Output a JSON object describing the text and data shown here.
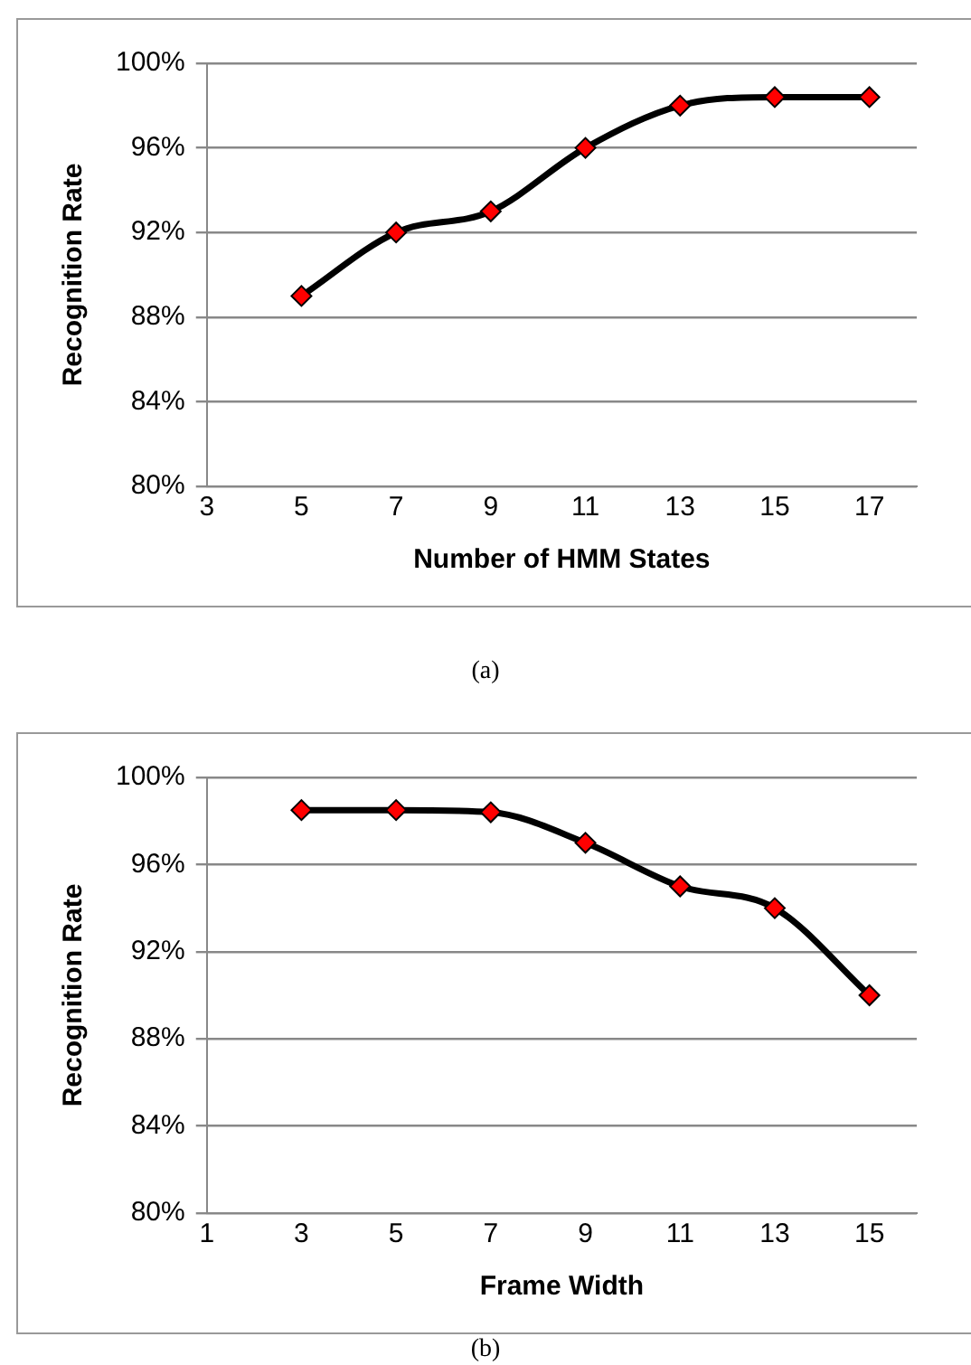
{
  "chart_data": [
    {
      "type": "line",
      "xlabel": "Number of HMM States",
      "ylabel": "Recognition Rate",
      "annotations": [
        "(a)"
      ],
      "x": [
        5,
        7,
        9,
        11,
        13,
        15,
        17
      ],
      "series": [
        {
          "color": "#000000",
          "colors": [
            "#ff0000",
            "#ff0000",
            "#ff0000",
            "#ff0000",
            "#ff0000",
            "#ff0000",
            "#ff0000"
          ],
          "values": [
            89,
            92,
            93,
            96,
            98,
            98.4,
            98.4
          ]
        }
      ],
      "xlim": [
        3,
        18
      ],
      "xticks": [
        3,
        5,
        7,
        9,
        11,
        13,
        15,
        17
      ],
      "ylim": [
        80,
        100
      ],
      "yticks": [
        {
          "value": 80,
          "label": "80%"
        },
        {
          "value": 84,
          "label": "84%"
        },
        {
          "value": 88,
          "label": "88%"
        },
        {
          "value": 92,
          "label": "92%"
        },
        {
          "value": 96,
          "label": "96%"
        },
        {
          "value": 100,
          "label": "100%"
        }
      ],
      "grid": "y",
      "legend": false,
      "marker": "diamond",
      "line_style": "solid"
    },
    {
      "type": "line",
      "xlabel": "Frame Width",
      "ylabel": "Recognition Rate",
      "annotations": [
        "(b)"
      ],
      "x": [
        3,
        5,
        7,
        9,
        11,
        13,
        15
      ],
      "series": [
        {
          "color": "#000000",
          "colors": [
            "#ff0000",
            "#ff0000",
            "#ff0000",
            "#ff0000",
            "#ff0000",
            "#ff0000",
            "#ff0000"
          ],
          "values": [
            98.5,
            98.5,
            98.4,
            97,
            95,
            94,
            90
          ]
        }
      ],
      "xlim": [
        1,
        16
      ],
      "xticks": [
        1,
        3,
        5,
        7,
        9,
        11,
        13,
        15
      ],
      "ylim": [
        80,
        100
      ],
      "yticks": [
        {
          "value": 80,
          "label": "80%"
        },
        {
          "value": 84,
          "label": "84%"
        },
        {
          "value": 88,
          "label": "88%"
        },
        {
          "value": 92,
          "label": "92%"
        },
        {
          "value": 96,
          "label": "96%"
        },
        {
          "value": 100,
          "label": "100%"
        }
      ],
      "grid": "y",
      "legend": false,
      "marker": "diamond",
      "line_style": "solid"
    }
  ]
}
